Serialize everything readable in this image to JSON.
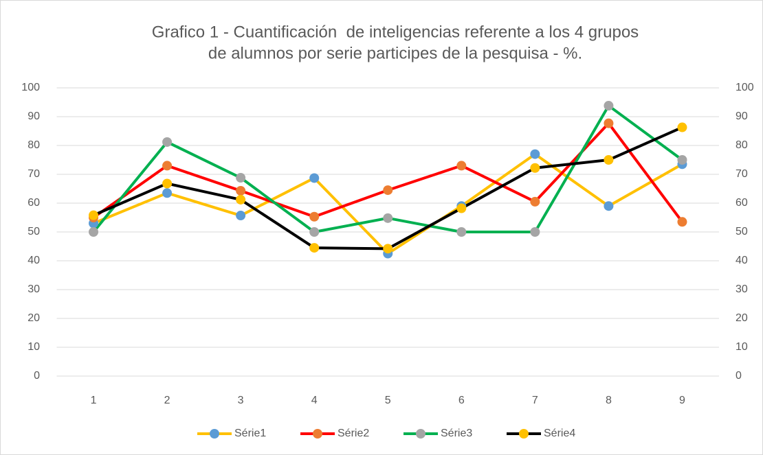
{
  "chart_data": {
    "type": "line",
    "title": [
      "Grafico 1 - Cuantificación  de inteligencias referente a los 4 grupos",
      "de alumnos por serie participes de la pesquisa - %."
    ],
    "categories": [
      "1",
      "2",
      "3",
      "4",
      "5",
      "6",
      "7",
      "8",
      "9"
    ],
    "series": [
      {
        "name": "Série1",
        "color": "#ffc000",
        "marker_color": "#5b9bd5",
        "values": [
          53,
          63.5,
          55.7,
          68.7,
          42.5,
          59,
          77,
          59,
          73.5
        ]
      },
      {
        "name": "Série2",
        "color": "#ff0000",
        "marker_color": "#ed7d31",
        "values": [
          55,
          73,
          64.3,
          55.3,
          64.5,
          73,
          60.5,
          87.7,
          53.5
        ]
      },
      {
        "name": "Série3",
        "color": "#00b050",
        "marker_color": "#a5a5a5",
        "values": [
          50,
          81.2,
          68.8,
          50,
          54.8,
          50,
          50,
          93.8,
          75
        ]
      },
      {
        "name": "Série4",
        "color": "#000000",
        "marker_color": "#ffc000",
        "values": [
          55.8,
          66.8,
          61.2,
          44.5,
          44.2,
          58.2,
          72.2,
          75,
          86.3
        ]
      }
    ],
    "ylim": [
      0,
      100
    ],
    "yticks": [
      0,
      10,
      20,
      30,
      40,
      50,
      60,
      70,
      80,
      90,
      100
    ],
    "y2lim": [
      0,
      100
    ],
    "y2ticks": [
      0,
      10,
      20,
      30,
      40,
      50,
      60,
      70,
      80,
      90,
      100
    ],
    "grid": true,
    "legend": "bottom"
  }
}
